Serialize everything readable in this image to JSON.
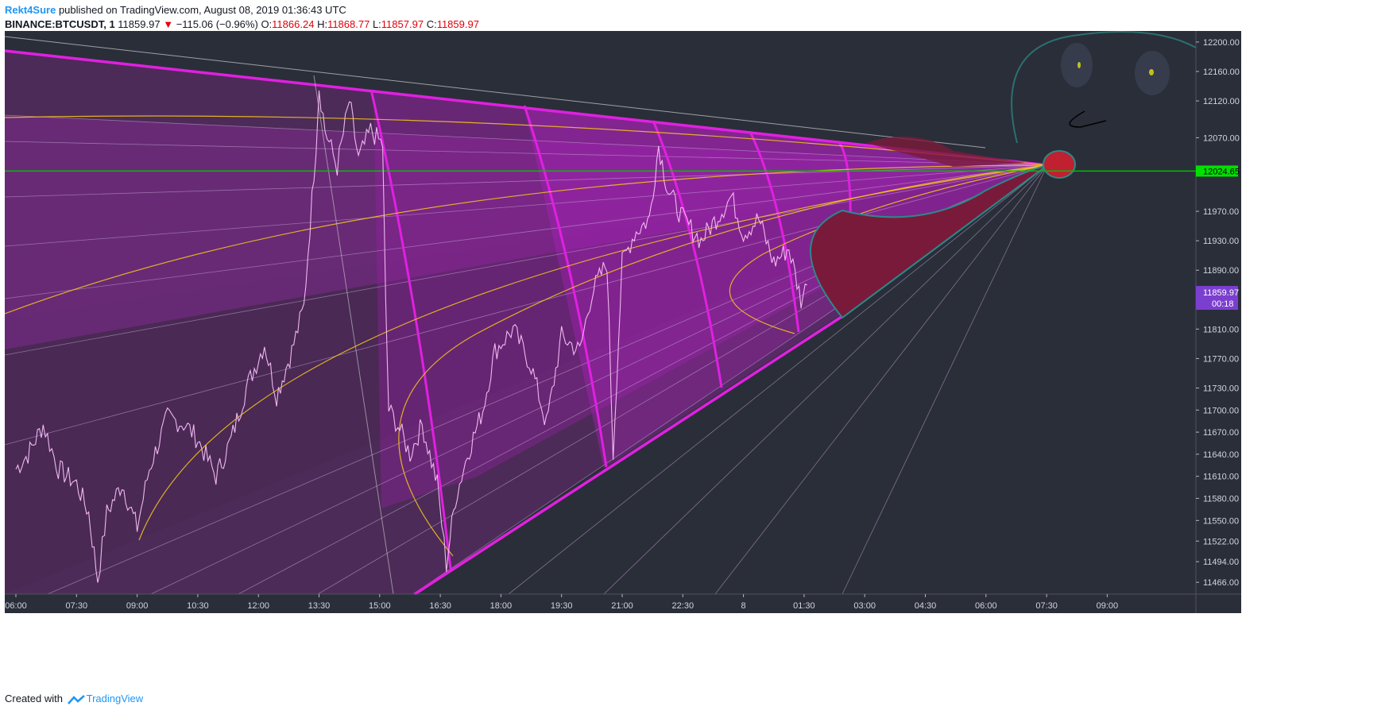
{
  "header": {
    "author": "Rekt4Sure",
    "published_text": "published on TradingView.com, August 08, 2019 01:36:43 UTC",
    "symbol": "BINANCE:BTCUSDT, 1",
    "last": "11859.97",
    "change": "−115.06 (−0.96%)",
    "o_label": "O:",
    "o_value": "11866.24",
    "h_label": "H:",
    "h_value": "11868.77",
    "l_label": "L:",
    "l_value": "11857.97",
    "c_label": "C:",
    "c_value": "11859.97"
  },
  "footer": {
    "created_with": "Created with",
    "brand": "TradingView"
  },
  "colors": {
    "background": "#2a2e39",
    "candle": "#f0b8f0",
    "magenta": "#e020e0",
    "yellow": "#f0c020",
    "green_line": "#00c000",
    "last_price_tag": "#7b3fd0",
    "dark_red": "#7a1a3a"
  },
  "chart_data": {
    "type": "line",
    "title": "",
    "xlabel": "",
    "ylabel": "",
    "x_ticks": [
      "06:00",
      "07:30",
      "09:00",
      "10:30",
      "12:00",
      "13:30",
      "15:00",
      "16:30",
      "18:00",
      "19:30",
      "21:00",
      "22:30",
      "8",
      "01:30",
      "03:00",
      "04:30",
      "06:00",
      "07:30",
      "09:00"
    ],
    "y_ticks": [
      12200.0,
      12160.0,
      12120.0,
      12070.0,
      11970.0,
      11930.0,
      11890.0,
      11810.0,
      11770.0,
      11730.0,
      11700.0,
      11670.0,
      11640.0,
      11610.0,
      11580.0,
      11550.0,
      11522.0,
      11494.0,
      11466.0
    ],
    "ylim": [
      11450,
      12215
    ],
    "horizontal_line": {
      "value": 12024.65,
      "label": "12024.65"
    },
    "last_price": {
      "value": 11859.97,
      "label": "11859.97",
      "countdown": "00:18"
    },
    "series": [
      {
        "values_anchor": [
          [
            0,
            11620
          ],
          [
            0.2,
            11640
          ],
          [
            0.45,
            11680
          ],
          [
            0.7,
            11620
          ],
          [
            1.0,
            11600
          ],
          [
            1.2,
            11560
          ],
          [
            1.35,
            11470
          ],
          [
            1.5,
            11560
          ],
          [
            1.75,
            11600
          ],
          [
            2.0,
            11540
          ],
          [
            2.2,
            11620
          ],
          [
            2.5,
            11690
          ],
          [
            2.8,
            11680
          ],
          [
            3.0,
            11660
          ],
          [
            3.3,
            11610
          ],
          [
            3.55,
            11660
          ],
          [
            3.8,
            11730
          ],
          [
            4.1,
            11790
          ],
          [
            4.3,
            11720
          ],
          [
            4.55,
            11780
          ],
          [
            4.75,
            11840
          ],
          [
            4.85,
            11950
          ],
          [
            4.95,
            12060
          ],
          [
            5.0,
            12140
          ],
          [
            5.1,
            12080
          ],
          [
            5.3,
            12030
          ],
          [
            5.5,
            12120
          ],
          [
            5.65,
            12040
          ],
          [
            5.85,
            12080
          ],
          [
            6.05,
            12060
          ],
          [
            6.1,
            11840
          ],
          [
            6.15,
            11700
          ],
          [
            6.3,
            11680
          ],
          [
            6.5,
            11640
          ],
          [
            6.7,
            11680
          ],
          [
            6.95,
            11600
          ],
          [
            7.1,
            11490
          ],
          [
            7.25,
            11580
          ],
          [
            7.45,
            11640
          ],
          [
            7.7,
            11700
          ],
          [
            7.9,
            11780
          ],
          [
            8.2,
            11810
          ],
          [
            8.5,
            11760
          ],
          [
            8.75,
            11680
          ],
          [
            9.0,
            11800
          ],
          [
            9.3,
            11780
          ],
          [
            9.5,
            11860
          ],
          [
            9.75,
            11900
          ],
          [
            9.85,
            11640
          ],
          [
            10.0,
            11900
          ],
          [
            10.2,
            11940
          ],
          [
            10.45,
            11960
          ],
          [
            10.6,
            12060
          ],
          [
            10.75,
            12000
          ],
          [
            11.0,
            11960
          ],
          [
            11.3,
            11930
          ],
          [
            11.55,
            11960
          ],
          [
            11.8,
            11990
          ],
          [
            12.0,
            11940
          ],
          [
            12.25,
            11960
          ],
          [
            12.5,
            11900
          ],
          [
            12.75,
            11920
          ],
          [
            12.95,
            11850
          ],
          [
            13.05,
            11870
          ]
        ]
      }
    ]
  }
}
